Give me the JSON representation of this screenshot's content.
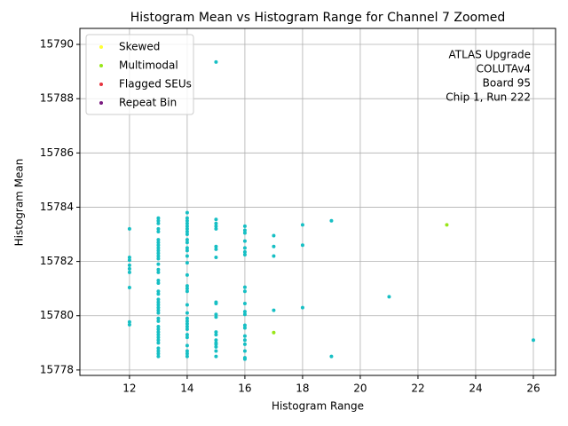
{
  "chart_data": {
    "type": "scatter",
    "title": "Histogram Mean vs Histogram Range for Channel 7 Zoomed",
    "xlabel": "Histogram Range",
    "ylabel": "Histogram Mean",
    "annotation": [
      "ATLAS Upgrade",
      "COLUTAv4",
      "Board 95",
      "Chip 1, Run 222"
    ],
    "xlim": [
      10.28,
      26.77
    ],
    "ylim": [
      15777.8,
      15790.59
    ],
    "xticks": [
      12,
      14,
      16,
      18,
      20,
      22,
      24,
      26
    ],
    "yticks": [
      15778,
      15780,
      15782,
      15784,
      15786,
      15788,
      15790
    ],
    "grid": true,
    "legend": "upper left",
    "series": [
      {
        "color": "#17bfc4",
        "x": [
          12,
          12,
          12,
          12,
          12,
          12,
          12,
          12,
          12,
          13,
          13,
          13,
          13,
          13,
          13,
          13,
          13,
          13,
          13,
          13,
          13,
          13,
          13,
          13,
          13,
          13,
          13,
          13,
          13,
          13,
          13,
          13,
          13,
          13,
          13,
          13,
          13,
          13,
          13,
          13,
          13,
          13,
          13,
          13,
          13,
          13,
          13,
          13,
          14,
          14,
          14,
          14,
          14,
          14,
          14,
          14,
          14,
          14,
          14,
          14,
          14,
          14,
          14,
          14,
          14,
          14,
          14,
          14,
          14,
          14,
          14,
          14,
          14,
          14,
          14,
          14,
          14,
          14,
          14,
          15,
          15,
          15,
          15,
          15,
          15,
          15,
          15,
          15,
          15,
          15,
          15,
          15,
          15,
          15,
          15,
          15,
          15,
          15,
          15,
          16,
          16,
          16,
          16,
          16,
          16,
          16,
          16,
          16,
          16,
          16,
          16,
          16,
          16,
          16,
          16,
          16,
          16,
          16,
          16,
          17,
          17,
          17,
          17,
          18,
          18,
          18,
          19,
          19,
          21,
          26
        ],
        "values": [
          15783.2,
          15782.15,
          15782.05,
          15781.86,
          15781.73,
          15781.6,
          15781.04,
          15779.77,
          15779.67,
          15783.6,
          15783.5,
          15783.4,
          15783.2,
          15783.1,
          15782.8,
          15782.7,
          15782.6,
          15782.5,
          15782.4,
          15782.3,
          15782.2,
          15782.1,
          15781.9,
          15781.7,
          15781.6,
          15781.3,
          15781.2,
          15780.9,
          15780.8,
          15780.6,
          15780.5,
          15780.4,
          15780.3,
          15780.2,
          15780.1,
          15779.9,
          15779.8,
          15779.6,
          15779.5,
          15779.4,
          15779.3,
          15779.2,
          15779.1,
          15779.0,
          15778.8,
          15778.7,
          15778.6,
          15778.5,
          15783.8,
          15783.6,
          15783.5,
          15783.4,
          15783.3,
          15783.2,
          15783.1,
          15783.0,
          15782.8,
          15782.7,
          15782.5,
          15782.4,
          15782.2,
          15781.95,
          15781.5,
          15781.1,
          15781.0,
          15780.9,
          15780.4,
          15780.1,
          15779.9,
          15779.8,
          15779.7,
          15779.6,
          15779.5,
          15779.3,
          15779.2,
          15778.9,
          15778.7,
          15778.6,
          15778.5,
          15789.35,
          15783.55,
          15783.4,
          15783.3,
          15783.2,
          15782.55,
          15782.45,
          15782.15,
          15780.5,
          15780.45,
          15780.05,
          15779.95,
          15779.4,
          15779.3,
          15779.1,
          15779.0,
          15778.95,
          15778.85,
          15778.7,
          15778.5,
          15783.3,
          15783.15,
          15783.05,
          15782.75,
          15782.5,
          15782.35,
          15782.25,
          15781.05,
          15780.9,
          15780.45,
          15780.15,
          15780.05,
          15779.65,
          15779.55,
          15779.25,
          15779.1,
          15778.95,
          15778.7,
          15778.45,
          15778.4,
          15782.95,
          15782.55,
          15782.2,
          15780.2,
          15783.35,
          15782.6,
          15780.3,
          15783.5,
          15778.5,
          15780.7,
          15779.1
        ]
      },
      {
        "name": "Skewed",
        "color": "#ffff33",
        "x": [],
        "values": []
      },
      {
        "name": "Multimodal",
        "color": "#99e619",
        "x": [
          23,
          17
        ],
        "values": [
          15783.35,
          15779.38
        ]
      },
      {
        "name": "Flagged SEUs",
        "color": "#e6333f",
        "x": [],
        "values": []
      },
      {
        "name": "Repeat Bin",
        "color": "#7a1a80",
        "x": [],
        "values": []
      }
    ]
  }
}
